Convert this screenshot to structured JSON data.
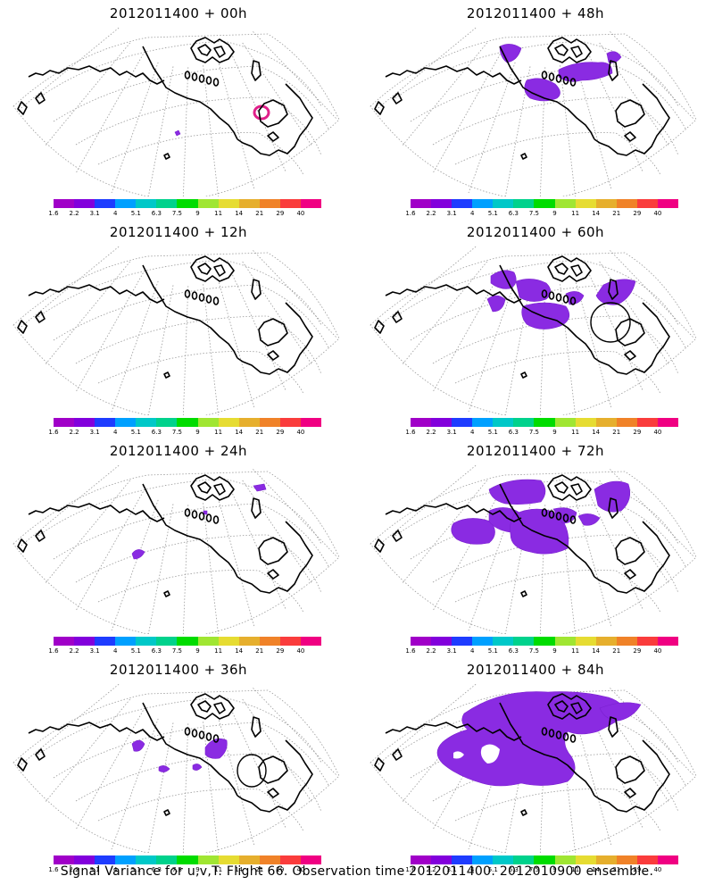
{
  "panels": [
    {
      "title": "2012011400 + 00h",
      "features": "p00"
    },
    {
      "title": "2012011400 + 48h",
      "features": "p48"
    },
    {
      "title": "2012011400 + 12h",
      "features": "p12"
    },
    {
      "title": "2012011400 + 60h",
      "features": "p60"
    },
    {
      "title": "2012011400 + 24h",
      "features": "p24"
    },
    {
      "title": "2012011400 + 72h",
      "features": "p72"
    },
    {
      "title": "2012011400 + 36h",
      "features": "p36"
    },
    {
      "title": "2012011400 + 84h",
      "features": "p84"
    }
  ],
  "colorbar": {
    "labels": [
      "1.6",
      "2.2",
      "3.1",
      "4",
      "5.1",
      "6.3",
      "7.5",
      "9",
      "11",
      "14",
      "21",
      "29",
      "40"
    ],
    "colors": [
      "#a000c8",
      "#8200dc",
      "#1e3cff",
      "#00a0ff",
      "#00c8c8",
      "#00d28c",
      "#00dc00",
      "#a0e632",
      "#e6dc32",
      "#e6af2d",
      "#f08228",
      "#fa3c3c",
      "#f00082"
    ]
  },
  "footer": "Signal Variance for u,v,T. Flight 66. Observation time 2012011400. 2012010900 ensemble.",
  "colors": {
    "variance_fill": "#8a2be2",
    "highlight_ring": "#e0208a",
    "coast": "#000000",
    "grid": "#9a9a9a"
  }
}
